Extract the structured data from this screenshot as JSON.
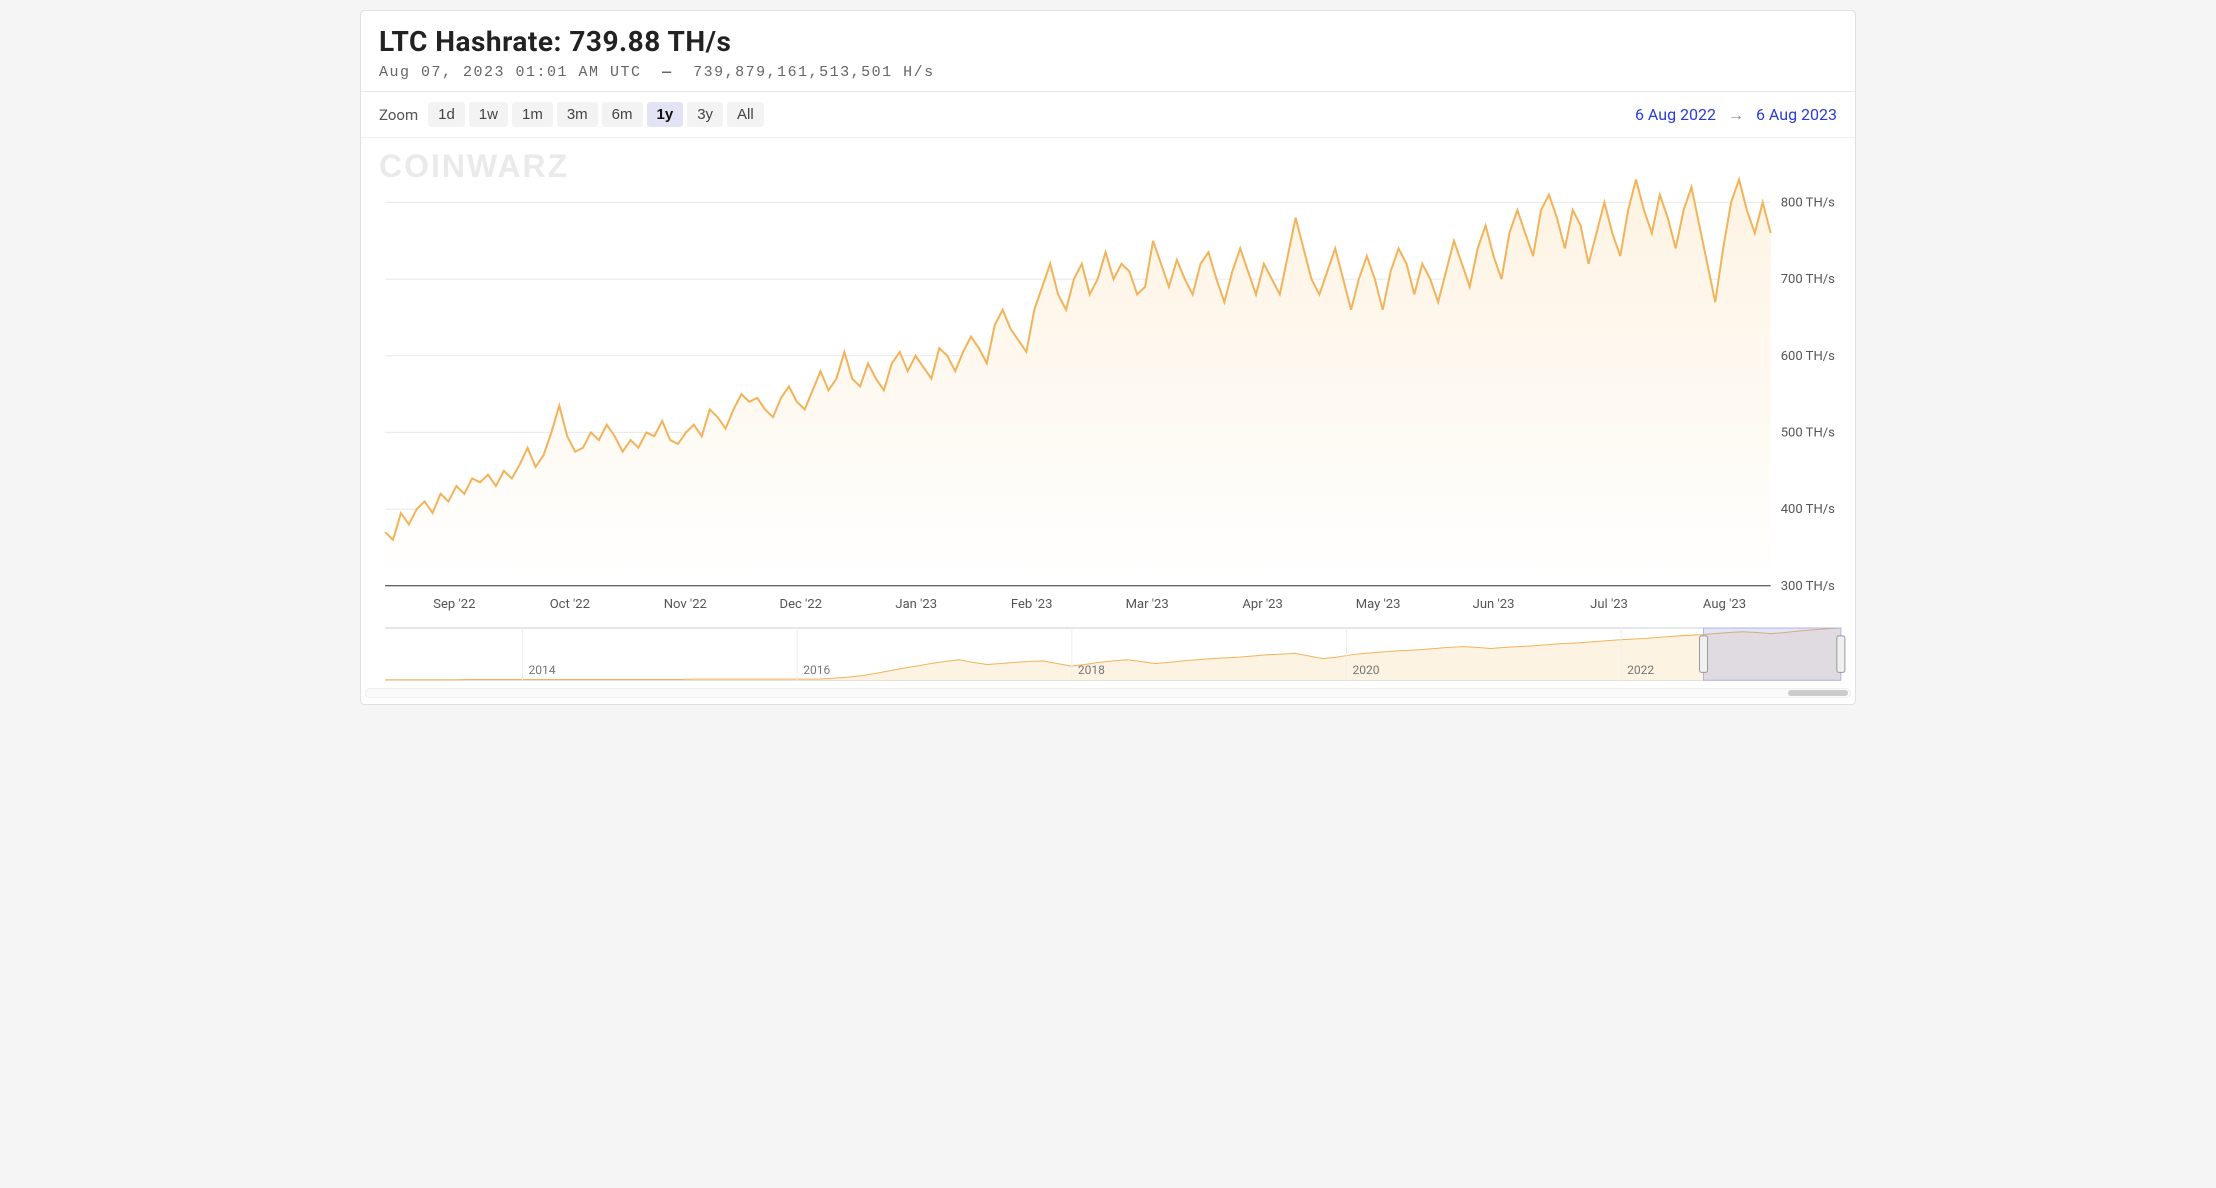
{
  "header": {
    "title_prefix": "LTC Hashrate:",
    "title_value": "739.88 TH/s",
    "timestamp": "Aug 07, 2023 01:01 AM UTC",
    "raw_value": "739,879,161,513,501 H/s"
  },
  "toolbar": {
    "zoom_label": "Zoom",
    "buttons": [
      "1d",
      "1w",
      "1m",
      "3m",
      "6m",
      "1y",
      "3y",
      "All"
    ],
    "selected": "1y",
    "date_from": "6 Aug 2022",
    "date_to": "6 Aug 2023",
    "arrow": "→"
  },
  "watermark": "COINWARZ",
  "main_chart": {
    "type": "line-area",
    "line_color": "#f2b35a",
    "fill_top_color": "#fdf3e2",
    "fill_bottom_color": "#ffffff",
    "line_width": 2,
    "background_color": "#ffffff",
    "grid_color": "#e8e8e8",
    "axis_color": "#333333",
    "label_color": "#555555",
    "label_fontsize": 13,
    "x_labels": [
      "Sep '22",
      "Oct '22",
      "Nov '22",
      "Dec '22",
      "Jan '23",
      "Feb '23",
      "Mar '23",
      "Apr '23",
      "May '23",
      "Jun '23",
      "Jul '23",
      "Aug '23"
    ],
    "y_ticks": [
      300,
      400,
      500,
      600,
      700,
      800
    ],
    "y_unit": "TH/s",
    "ylim": [
      300,
      850
    ],
    "values": [
      370,
      360,
      395,
      380,
      400,
      410,
      395,
      420,
      410,
      430,
      420,
      440,
      435,
      445,
      430,
      450,
      440,
      458,
      480,
      455,
      470,
      500,
      535,
      495,
      475,
      480,
      500,
      490,
      510,
      495,
      475,
      490,
      480,
      500,
      495,
      515,
      490,
      485,
      500,
      510,
      495,
      530,
      520,
      505,
      530,
      550,
      540,
      545,
      530,
      520,
      545,
      560,
      540,
      530,
      555,
      580,
      555,
      570,
      605,
      570,
      560,
      590,
      570,
      555,
      590,
      605,
      580,
      600,
      585,
      570,
      610,
      600,
      580,
      605,
      625,
      610,
      590,
      640,
      660,
      635,
      620,
      605,
      660,
      690,
      720,
      680,
      660,
      700,
      720,
      680,
      700,
      735,
      700,
      720,
      710,
      680,
      690,
      750,
      720,
      690,
      725,
      700,
      680,
      720,
      735,
      700,
      670,
      710,
      740,
      710,
      680,
      720,
      700,
      680,
      730,
      780,
      740,
      700,
      680,
      710,
      740,
      700,
      660,
      700,
      730,
      700,
      660,
      710,
      740,
      720,
      680,
      720,
      700,
      670,
      710,
      750,
      720,
      690,
      740,
      770,
      730,
      700,
      760,
      790,
      760,
      730,
      790,
      810,
      780,
      740,
      790,
      770,
      720,
      760,
      800,
      760,
      730,
      790,
      830,
      790,
      760,
      810,
      780,
      740,
      790,
      820,
      770,
      720,
      670,
      740,
      800,
      830,
      790,
      760,
      800,
      760
    ]
  },
  "nav_chart": {
    "type": "line-area",
    "line_color": "#f2b35a",
    "fill_color": "#fdf3e2",
    "border_color": "#cccccc",
    "brush_fill": "#8a95e0",
    "brush_opacity": 0.25,
    "handle_fill": "#f0f0f0",
    "handle_stroke": "#999999",
    "x_labels": [
      "2014",
      "2016",
      "2018",
      "2020",
      "2022"
    ],
    "years_range": [
      2013,
      2023.6
    ],
    "brush_from": 2022.6,
    "brush_to": 2023.6,
    "values": [
      1,
      1,
      1,
      1,
      1,
      1,
      2,
      2,
      2,
      2,
      2,
      2,
      2,
      2,
      2,
      2,
      2,
      2,
      2,
      2,
      2,
      2,
      3,
      3,
      3,
      3,
      3,
      3,
      3,
      3,
      3,
      3,
      5,
      8,
      12,
      18,
      25,
      32,
      38,
      45,
      50,
      55,
      48,
      42,
      45,
      48,
      50,
      52,
      45,
      38,
      42,
      48,
      52,
      55,
      50,
      45,
      48,
      52,
      55,
      58,
      60,
      62,
      65,
      68,
      70,
      72,
      65,
      58,
      62,
      68,
      72,
      75,
      78,
      80,
      82,
      85,
      88,
      90,
      88,
      85,
      88,
      90,
      92,
      95,
      98,
      100,
      102,
      105,
      108,
      110,
      112,
      115,
      118,
      120,
      122,
      125,
      128,
      130,
      128,
      125,
      128,
      132,
      135,
      138,
      140
    ]
  }
}
